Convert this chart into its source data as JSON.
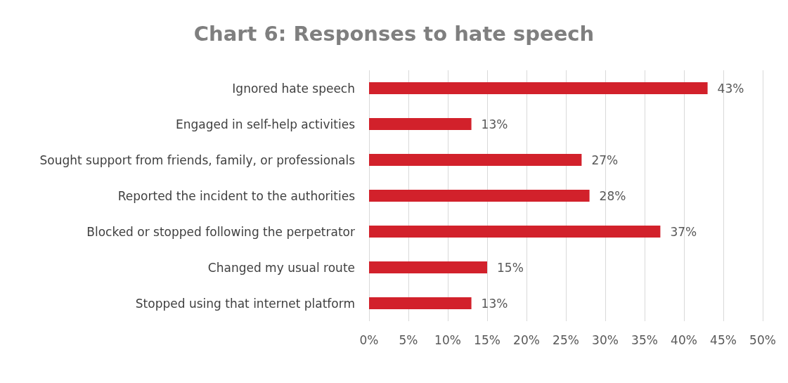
{
  "chart_data": {
    "type": "bar",
    "orientation": "horizontal",
    "title": "Chart 6: Responses to hate speech",
    "categories": [
      "Ignored hate speech",
      "Engaged in self-help activities",
      "Sought support from friends, family, or professionals",
      "Reported the incident to the authorities",
      "Blocked or stopped following the perpetrator",
      "Changed my usual route",
      "Stopped using that internet platform"
    ],
    "values": [
      43,
      13,
      27,
      28,
      37,
      15,
      13
    ],
    "value_labels": [
      "43%",
      "13%",
      "27%",
      "28%",
      "37%",
      "15%",
      "13%"
    ],
    "color": "#d2212b",
    "xlim": [
      0,
      50
    ],
    "xticks": [
      {
        "value": 0,
        "label": "0%"
      },
      {
        "value": 5,
        "label": "5%"
      },
      {
        "value": 10,
        "label": "10%"
      },
      {
        "value": 15,
        "label": "15%"
      },
      {
        "value": 20,
        "label": "20%"
      },
      {
        "value": 25,
        "label": "25%"
      },
      {
        "value": 30,
        "label": "30%"
      },
      {
        "value": 35,
        "label": "35%"
      },
      {
        "value": 40,
        "label": "40%"
      },
      {
        "value": 45,
        "label": "45%"
      },
      {
        "value": 50,
        "label": "50%"
      }
    ],
    "grid": "x"
  }
}
